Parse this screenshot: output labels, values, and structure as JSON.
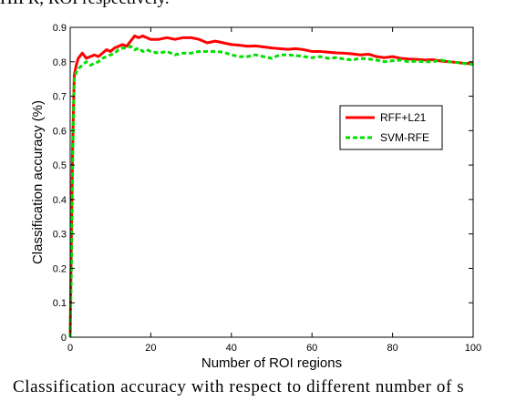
{
  "captions": {
    "top": "HIFR, ROI respectively.",
    "bottom": "Classification accuracy with respect to different number of s"
  },
  "chart_data": {
    "type": "line",
    "title": "",
    "xlabel": "Number of ROI regions",
    "ylabel": "Classification accuracy (%)",
    "xlim": [
      0,
      100
    ],
    "ylim": [
      0,
      0.9
    ],
    "xticks": [
      "0",
      "20",
      "40",
      "60",
      "80",
      "100"
    ],
    "yticks": [
      "0",
      "0.1",
      "0.2",
      "0.3",
      "0.4",
      "0.5",
      "0.6",
      "0.7",
      "0.8",
      "0.9"
    ],
    "grid": false,
    "legend_position": "right",
    "series": [
      {
        "name": "RFF+L21",
        "color": "#ff0000",
        "dash": "solid",
        "x": [
          0,
          0.3,
          0.6,
          1,
          1.5,
          2,
          3,
          4,
          5,
          6,
          7,
          8,
          9,
          10,
          11,
          12,
          13,
          14,
          15,
          16,
          17,
          18,
          19,
          20,
          22,
          24,
          26,
          28,
          30,
          32,
          34,
          36,
          38,
          40,
          42,
          44,
          46,
          48,
          50,
          52,
          54,
          56,
          58,
          60,
          62,
          64,
          66,
          68,
          70,
          72,
          74,
          76,
          78,
          80,
          82,
          84,
          86,
          88,
          90,
          92,
          94,
          96,
          98,
          100
        ],
        "y": [
          0,
          0.3,
          0.55,
          0.76,
          0.79,
          0.81,
          0.825,
          0.81,
          0.815,
          0.82,
          0.815,
          0.825,
          0.835,
          0.83,
          0.84,
          0.845,
          0.85,
          0.845,
          0.86,
          0.875,
          0.87,
          0.875,
          0.87,
          0.865,
          0.865,
          0.87,
          0.865,
          0.87,
          0.87,
          0.865,
          0.855,
          0.86,
          0.855,
          0.85,
          0.848,
          0.845,
          0.846,
          0.843,
          0.84,
          0.838,
          0.836,
          0.838,
          0.835,
          0.83,
          0.83,
          0.828,
          0.826,
          0.825,
          0.823,
          0.82,
          0.822,
          0.815,
          0.812,
          0.815,
          0.81,
          0.808,
          0.807,
          0.805,
          0.806,
          0.802,
          0.8,
          0.798,
          0.795,
          0.795
        ]
      },
      {
        "name": "SVM-RFE",
        "color": "#00e000",
        "dash": "dashed",
        "x": [
          0,
          0.3,
          0.6,
          1,
          1.5,
          2,
          3,
          4,
          5,
          6,
          7,
          8,
          9,
          10,
          11,
          12,
          13,
          14,
          15,
          16,
          17,
          18,
          19,
          20,
          22,
          24,
          26,
          28,
          30,
          32,
          34,
          36,
          38,
          40,
          42,
          44,
          46,
          48,
          50,
          52,
          54,
          56,
          58,
          60,
          62,
          64,
          66,
          68,
          70,
          72,
          74,
          76,
          78,
          80,
          82,
          84,
          86,
          88,
          90,
          92,
          94,
          96,
          98,
          100
        ],
        "y": [
          0,
          0.2,
          0.5,
          0.75,
          0.77,
          0.78,
          0.79,
          0.8,
          0.79,
          0.795,
          0.8,
          0.81,
          0.815,
          0.82,
          0.825,
          0.835,
          0.84,
          0.84,
          0.845,
          0.835,
          0.84,
          0.83,
          0.835,
          0.83,
          0.825,
          0.83,
          0.82,
          0.825,
          0.825,
          0.83,
          0.83,
          0.83,
          0.828,
          0.82,
          0.815,
          0.815,
          0.82,
          0.815,
          0.81,
          0.82,
          0.82,
          0.818,
          0.815,
          0.812,
          0.815,
          0.81,
          0.812,
          0.808,
          0.805,
          0.81,
          0.808,
          0.805,
          0.8,
          0.803,
          0.805,
          0.8,
          0.802,
          0.8,
          0.8,
          0.805,
          0.8,
          0.798,
          0.795,
          0.792
        ]
      }
    ]
  }
}
